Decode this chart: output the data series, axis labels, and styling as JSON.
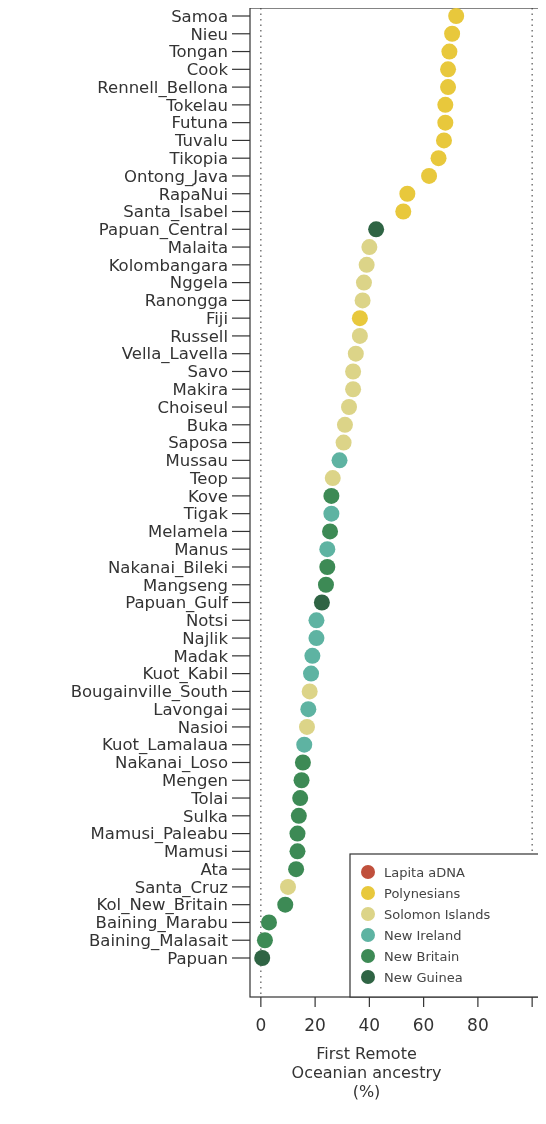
{
  "chart_data": {
    "type": "scatter",
    "orientation": "horizontal",
    "xlabel": "First Remote Oceanian ancestry (%)",
    "categories": [
      "Samoa",
      "Nieu",
      "Tongan",
      "Cook",
      "Rennell_Bellona",
      "Tokelau",
      "Futuna",
      "Tuvalu",
      "Tikopia",
      "Ontong_Java",
      "RapaNui",
      "Santa_Isabel",
      "Papuan_Central",
      "Malaita",
      "Kolombangara",
      "Nggela",
      "Ranongga",
      "Fiji",
      "Russell",
      "Vella_Lavella",
      "Savo",
      "Makira",
      "Choiseul",
      "Buka",
      "Saposa",
      "Mussau",
      "Teop",
      "Kove",
      "Tigak",
      "Melamela",
      "Manus",
      "Nakanai_Bileki",
      "Mangseng",
      "Papuan_Gulf",
      "Notsi",
      "Najlik",
      "Madak",
      "Kuot_Kabil",
      "Bougainville_South",
      "Lavongai",
      "Nasioi",
      "Kuot_Lamalaua",
      "Nakanai_Loso",
      "Mengen",
      "Tolai",
      "Sulka",
      "Mamusi_Paleabu",
      "Mamusi",
      "Ata",
      "Santa_Cruz",
      "Kol_New_Britain",
      "Baining_Marabu",
      "Baining_Malasait",
      "Papuan"
    ],
    "series": [
      {
        "name": "Lapita aDNA",
        "color": "#c0503c",
        "values": [
          null,
          null,
          null,
          null,
          null,
          null,
          null,
          null,
          null,
          null,
          null,
          null,
          null,
          null,
          null,
          null,
          null,
          null,
          null,
          null,
          null,
          null,
          null,
          null,
          null,
          null,
          null,
          null,
          null,
          null,
          null,
          null,
          null,
          null,
          null,
          null,
          null,
          null,
          null,
          null,
          null,
          null,
          null,
          null,
          null,
          null,
          null,
          null,
          null,
          null,
          null,
          null,
          null,
          null
        ]
      },
      {
        "name": "Polynesians",
        "color": "#e8c83c",
        "values": [
          72,
          70.5,
          69.5,
          69,
          69,
          68,
          68,
          67.5,
          65.5,
          62,
          54,
          52.5,
          null,
          null,
          null,
          null,
          null,
          36.5,
          null,
          null,
          null,
          null,
          null,
          null,
          null,
          null,
          null,
          null,
          null,
          null,
          null,
          null,
          null,
          null,
          null,
          null,
          null,
          null,
          null,
          null,
          null,
          null,
          null,
          null,
          null,
          null,
          null,
          null,
          null,
          null,
          null,
          null,
          null,
          null
        ]
      },
      {
        "name": "Solomon Islands",
        "color": "#dcd488",
        "values": [
          null,
          null,
          null,
          null,
          null,
          null,
          null,
          null,
          null,
          null,
          null,
          null,
          null,
          40,
          39,
          38,
          37.5,
          null,
          36.5,
          35,
          34,
          34,
          32.5,
          31,
          30.5,
          null,
          26.5,
          null,
          null,
          null,
          null,
          null,
          null,
          null,
          null,
          null,
          null,
          null,
          18,
          null,
          17,
          null,
          null,
          null,
          null,
          null,
          null,
          null,
          null,
          10,
          null,
          null,
          null,
          null
        ]
      },
      {
        "name": "New Ireland",
        "color": "#5eb3a2",
        "values": [
          null,
          null,
          null,
          null,
          null,
          null,
          null,
          null,
          null,
          null,
          null,
          null,
          null,
          null,
          null,
          null,
          null,
          null,
          null,
          null,
          null,
          null,
          null,
          null,
          null,
          29,
          null,
          null,
          26,
          null,
          24.5,
          null,
          null,
          null,
          20.5,
          20.5,
          19,
          18.5,
          null,
          17.5,
          null,
          16,
          null,
          null,
          null,
          null,
          null,
          null,
          null,
          null,
          null,
          null,
          null,
          null
        ]
      },
      {
        "name": "New Britain",
        "color": "#3d8a55",
        "values": [
          null,
          null,
          null,
          null,
          null,
          null,
          null,
          null,
          null,
          null,
          null,
          null,
          null,
          null,
          null,
          null,
          null,
          null,
          null,
          null,
          null,
          null,
          null,
          null,
          null,
          null,
          null,
          26,
          null,
          25.5,
          null,
          24.5,
          24,
          null,
          null,
          null,
          null,
          null,
          null,
          null,
          null,
          null,
          15.5,
          15,
          14.5,
          14,
          13.5,
          13.5,
          13,
          null,
          9,
          3,
          1.5,
          null
        ]
      },
      {
        "name": "New Guinea",
        "color": "#2f6444",
        "values": [
          null,
          null,
          null,
          null,
          null,
          null,
          null,
          null,
          null,
          null,
          null,
          null,
          42.5,
          null,
          null,
          null,
          null,
          null,
          null,
          null,
          null,
          null,
          null,
          null,
          null,
          null,
          null,
          null,
          null,
          null,
          null,
          null,
          null,
          22.5,
          null,
          null,
          null,
          null,
          null,
          null,
          null,
          null,
          null,
          null,
          null,
          null,
          null,
          null,
          null,
          null,
          null,
          null,
          null,
          0.5
        ]
      }
    ],
    "xlim": [
      -4,
      104
    ],
    "xticks": [
      0,
      20,
      40,
      60,
      80,
      {
        "value": 100,
        "label": null
      }
    ],
    "ref_lines": [
      {
        "axis": "x",
        "value": 0,
        "color": "#555555",
        "line_style": "dotted"
      },
      {
        "axis": "x",
        "value": 100,
        "color": "#555555",
        "line_style": "dotted"
      }
    ],
    "marker": "circle",
    "legend": "bottom right",
    "grid": false
  }
}
